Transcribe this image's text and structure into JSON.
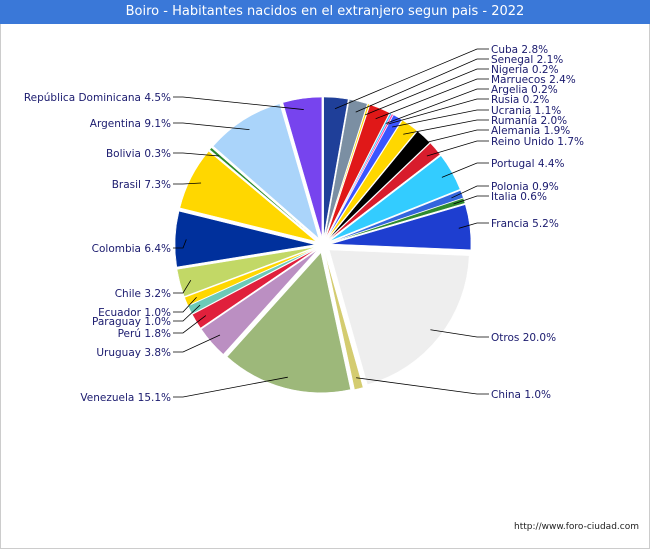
{
  "title": "Boiro - Habitantes nacidos en el extranjero segun pais - 2022",
  "credit": "http://www.foro-ciudad.com",
  "colors": {
    "title_bar": "#3a78d8",
    "label_text": "#1a1a6e"
  },
  "chart_data": {
    "type": "pie",
    "title": "Boiro - Habitantes nacidos en el extranjero segun pais - 2022",
    "slices": [
      {
        "name": "Cuba",
        "value": 2.8,
        "label": "Cuba 2.8%",
        "color": "#1f3f99"
      },
      {
        "name": "Senegal",
        "value": 2.1,
        "label": "Senegal 2.1%",
        "color": "#7b8fa3"
      },
      {
        "name": "Nigeria",
        "value": 0.2,
        "label": "Nigeria 0.2%",
        "color": "#ffd700"
      },
      {
        "name": "Marruecos",
        "value": 2.4,
        "label": "Marruecos 2.4%",
        "color": "#e01818"
      },
      {
        "name": "Argelia",
        "value": 0.2,
        "label": "Argelia 0.2%",
        "color": "#36c2ff"
      },
      {
        "name": "Rusia",
        "value": 0.2,
        "label": "Rusia 0.2%",
        "color": "#ff44aa"
      },
      {
        "name": "Ucrania",
        "value": 1.1,
        "label": "Ucrania 1.1%",
        "color": "#3a55ff"
      },
      {
        "name": "Rumanía",
        "value": 2.0,
        "label": "Rumanía 2.0%",
        "color": "#ffd700"
      },
      {
        "name": "Alemania",
        "value": 1.9,
        "label": "Alemania 1.9%",
        "color": "#000000"
      },
      {
        "name": "Reino Unido",
        "value": 1.7,
        "label": "Reino Unido 1.7%",
        "color": "#d81c2c"
      },
      {
        "name": "Portugal",
        "value": 4.4,
        "label": "Portugal 4.4%",
        "color": "#33ccff"
      },
      {
        "name": "Polonia",
        "value": 0.9,
        "label": "Polonia 0.9%",
        "color": "#3366dd"
      },
      {
        "name": "Italia",
        "value": 0.6,
        "label": "Italia 0.6%",
        "color": "#2e8b2e"
      },
      {
        "name": "Francia",
        "value": 5.2,
        "label": "Francia 5.2%",
        "color": "#1e3ed0"
      },
      {
        "name": "Otros",
        "value": 20.0,
        "label": "Otros 20.0%",
        "color": "#eeeeee"
      },
      {
        "name": "China",
        "value": 1.0,
        "label": "China 1.0%",
        "color": "#d4cc70"
      },
      {
        "name": "Venezuela",
        "value": 15.1,
        "label": "Venezuela 15.1%",
        "color": "#9db87a"
      },
      {
        "name": "Uruguay",
        "value": 3.8,
        "label": "Uruguay 3.8%",
        "color": "#bb8fc2"
      },
      {
        "name": "Perú",
        "value": 1.8,
        "label": "Perú 1.8%",
        "color": "#e0203c"
      },
      {
        "name": "Paraguay",
        "value": 1.0,
        "label": "Paraguay 1.0%",
        "color": "#6ccab8"
      },
      {
        "name": "Ecuador",
        "value": 1.0,
        "label": "Ecuador 1.0%",
        "color": "#ffd700"
      },
      {
        "name": "Chile",
        "value": 3.2,
        "label": "Chile 3.2%",
        "color": "#c2d866"
      },
      {
        "name": "Colombia",
        "value": 6.4,
        "label": "Colombia 6.4%",
        "color": "#00309c"
      },
      {
        "name": "Brasil",
        "value": 7.3,
        "label": "Brasil 7.3%",
        "color": "#ffd700"
      },
      {
        "name": "Bolivia",
        "value": 0.3,
        "label": "Bolivia 0.3%",
        "color": "#2e8b2e"
      },
      {
        "name": "Argentina",
        "value": 9.1,
        "label": "Argentina 9.1%",
        "color": "#aad4fa"
      },
      {
        "name": "República Dominicana",
        "value": 4.5,
        "label": "República Dominicana 4.5%",
        "color": "#7744ee"
      }
    ],
    "legend": "none"
  }
}
